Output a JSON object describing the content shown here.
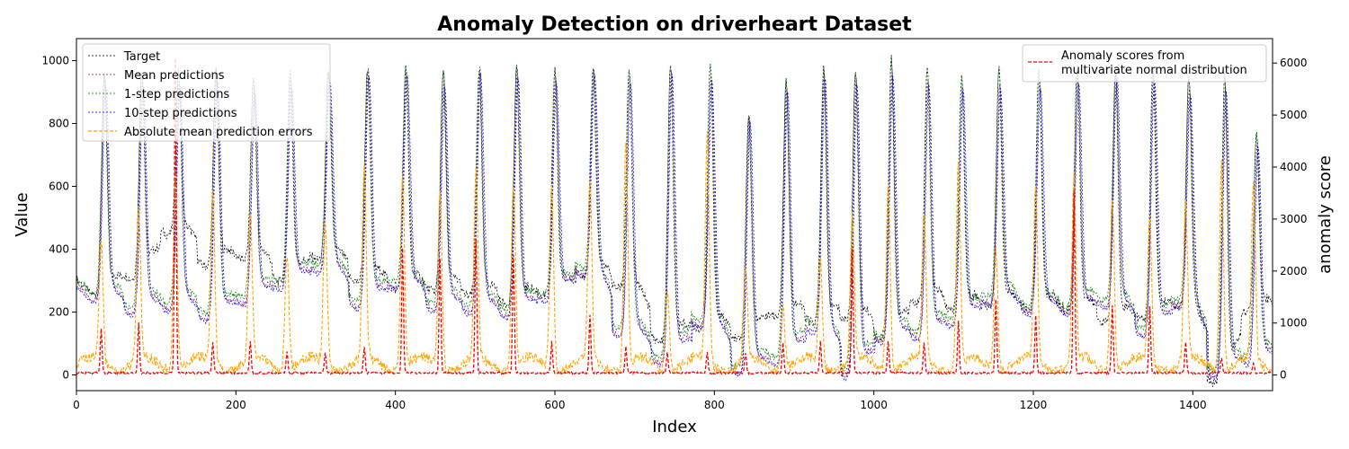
{
  "chart_data": {
    "type": "line",
    "title": "Anomaly Detection on driverheart Dataset",
    "xlabel": "Index",
    "ylabel": "Value",
    "y2label": "anomaly score",
    "xlim": [
      0,
      1500
    ],
    "ylim": [
      -50,
      1070
    ],
    "y2lim": [
      -300,
      6470
    ],
    "xticks": [
      0,
      200,
      400,
      600,
      800,
      1000,
      1200,
      1400
    ],
    "yticks": [
      0,
      200,
      400,
      600,
      800,
      1000
    ],
    "y2ticks": [
      0,
      1000,
      2000,
      3000,
      4000,
      5000,
      6000
    ],
    "grid": false,
    "legend_left": {
      "placement": "top-left",
      "entries": [
        {
          "name": "Target",
          "color": "#000000",
          "style": "dotted"
        },
        {
          "name": "Mean predictions",
          "color": "#800080",
          "style": "dotted"
        },
        {
          "name": "1-step predictions",
          "color": "#008000",
          "style": "dotted"
        },
        {
          "name": "10-step predictions",
          "color": "#0000ff",
          "style": "dotted"
        },
        {
          "name": "Absolute mean prediction errors",
          "color": "#ffa500",
          "style": "dashed"
        }
      ]
    },
    "legend_right": {
      "placement": "top-right",
      "entries": [
        {
          "name_lines": [
            "Anomaly scores from",
            "multivariate normal distribution"
          ],
          "color": "#ff0000",
          "style": "dashed"
        }
      ]
    },
    "beat_peaks_x": [
      35,
      82,
      128,
      175,
      222,
      268,
      316,
      365,
      413,
      460,
      505,
      552,
      600,
      648,
      693,
      745,
      795,
      843,
      890,
      937,
      977,
      1022,
      1067,
      1110,
      1157,
      1207,
      1255,
      1303,
      1350,
      1395,
      1440,
      1480
    ],
    "target_peaks": [
      960,
      970,
      960,
      975,
      950,
      965,
      975,
      975,
      975,
      975,
      975,
      975,
      975,
      975,
      975,
      990,
      985,
      830,
      940,
      975,
      975,
      1010,
      975,
      945,
      975,
      975,
      975,
      965,
      975,
      945,
      945,
      770
    ],
    "target_troughs": [
      280,
      330,
      470,
      370,
      390,
      320,
      390,
      320,
      295,
      290,
      275,
      250,
      275,
      340,
      300,
      130,
      170,
      140,
      210,
      190,
      200,
      140,
      250,
      230,
      240,
      230,
      230,
      190,
      200,
      240,
      0,
      220
    ],
    "prediction_troughs": [
      260,
      220,
      230,
      200,
      250,
      300,
      350,
      240,
      300,
      230,
      220,
      210,
      260,
      340,
      150,
      60,
      180,
      30,
      60,
      160,
      20,
      130,
      140,
      180,
      250,
      220,
      220,
      240,
      150,
      240,
      20,
      60
    ],
    "error_peaks": [
      390,
      480,
      610,
      560,
      470,
      370,
      460,
      600,
      610,
      560,
      600,
      580,
      580,
      560,
      720,
      250,
      720,
      300,
      200,
      330,
      470,
      600,
      460,
      650,
      380,
      560,
      580,
      550,
      480,
      500,
      660,
      560
    ],
    "anomaly_peaks": [
      850,
      980,
      6040,
      600,
      600,
      400,
      400,
      500,
      2400,
      2200,
      2600,
      2250,
      600,
      1100,
      500,
      400,
      400,
      400,
      600,
      600,
      2400,
      600,
      600,
      1000,
      1400,
      1100,
      3500,
      1300,
      1300,
      600,
      300,
      200
    ]
  }
}
